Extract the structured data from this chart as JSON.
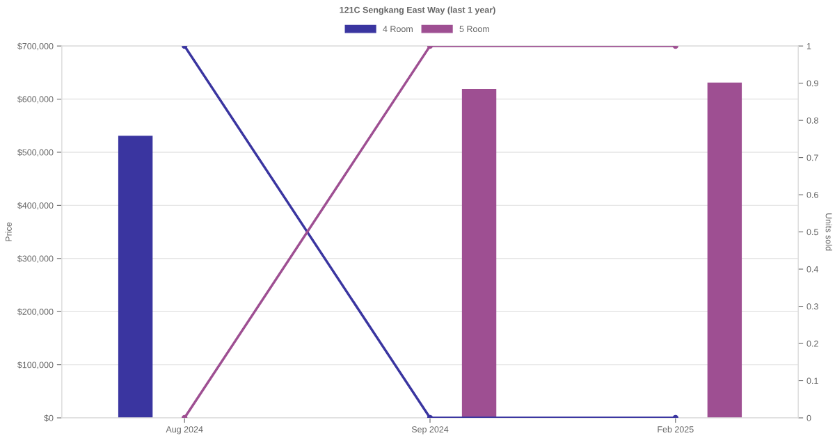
{
  "chart_data": {
    "type": "bar",
    "title": "121C Sengkang East Way (last 1 year)",
    "ylabel": "Price",
    "y2label": "Units sold",
    "categories": [
      "Aug 2024",
      "Sep 2024",
      "Feb 2025"
    ],
    "series": [
      {
        "name": "4 Room",
        "color": "#3a35a0",
        "values": [
          531000,
          null,
          null
        ]
      },
      {
        "name": "5 Room",
        "color": "#9e4f92",
        "values": [
          null,
          619000,
          631000
        ]
      },
      {
        "type": "line",
        "axis": "y2",
        "color": "#3a35a0",
        "values": [
          1,
          0,
          0
        ]
      },
      {
        "type": "line",
        "axis": "y2",
        "color": "#9e4f92",
        "values": [
          0,
          1,
          1
        ]
      }
    ],
    "ylim": [
      0,
      700000
    ],
    "yticks": [
      {
        "value": 0,
        "label": "$0"
      },
      {
        "value": 100000,
        "label": "$100,000"
      },
      {
        "value": 200000,
        "label": "$200,000"
      },
      {
        "value": 300000,
        "label": "$300,000"
      },
      {
        "value": 400000,
        "label": "$400,000"
      },
      {
        "value": 500000,
        "label": "$500,000"
      },
      {
        "value": 600000,
        "label": "$600,000"
      },
      {
        "value": 700000,
        "label": "$700,000"
      }
    ],
    "y2lim": [
      0,
      1
    ],
    "y2ticks": [
      0,
      0.1,
      0.2,
      0.3,
      0.4,
      0.5,
      0.6,
      0.7,
      0.8,
      0.9,
      1
    ],
    "grid": "y",
    "legend": "top",
    "marker": "circle",
    "line_style": "solid"
  }
}
